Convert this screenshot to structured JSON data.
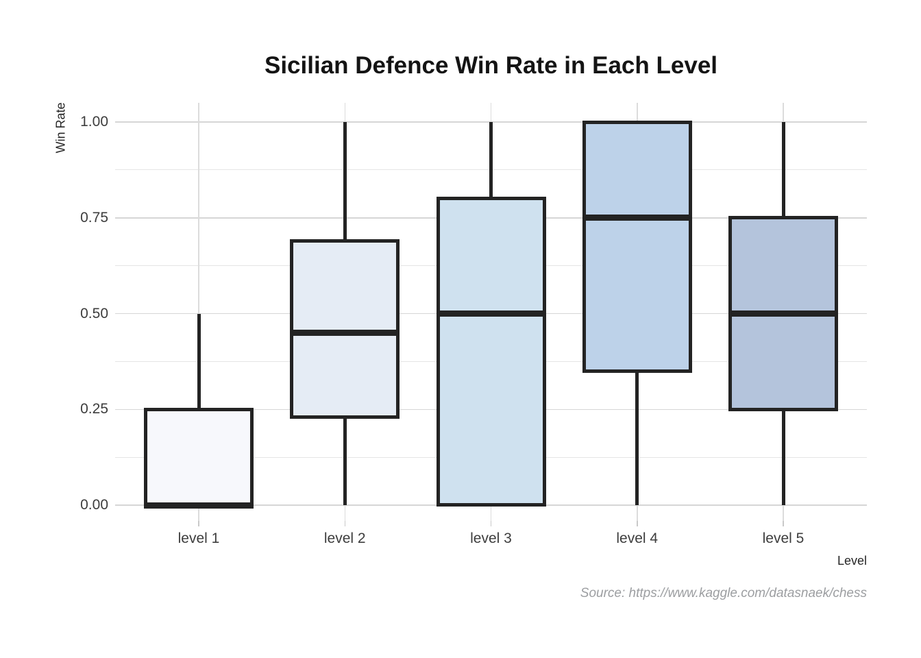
{
  "header": {
    "title": "Sicilian Defence Win Rate in Each Level"
  },
  "chart_data": {
    "type": "boxplot",
    "title": "Sicilian Defence Win Rate in Each Level",
    "xlabel": "Level",
    "ylabel": "Win Rate",
    "categories": [
      "level 1",
      "level 2",
      "level 3",
      "level 4",
      "level 5"
    ],
    "ylim": [
      0,
      1
    ],
    "yticks": {
      "values": [
        0,
        0.25,
        0.5,
        0.75,
        1.0
      ],
      "labels": [
        "0.00",
        "0.25",
        "0.50",
        "0.75",
        "1.00"
      ]
    },
    "minor_ytick_values": [
      0.125,
      0.375,
      0.625,
      0.875
    ],
    "grid": "horizontal major+minor gridlines, vertical gridline at each category",
    "legend": null,
    "boxes": [
      {
        "category": "level 1",
        "whisker_low": 0.0,
        "q1": 0.0,
        "median": 0.0,
        "q3": 0.25,
        "whisker_high": 0.5,
        "fill": "#f7f8fc"
      },
      {
        "category": "level 2",
        "whisker_low": 0.0,
        "q1": 0.23,
        "median": 0.45,
        "q3": 0.69,
        "whisker_high": 1.0,
        "fill": "#e5ecf5"
      },
      {
        "category": "level 3",
        "whisker_low": 0.0,
        "q1": 0.0,
        "median": 0.5,
        "q3": 0.8,
        "whisker_high": 1.0,
        "fill": "#cfe1ef"
      },
      {
        "category": "level 4",
        "whisker_low": 0.0,
        "q1": 0.35,
        "median": 0.75,
        "q3": 1.0,
        "whisker_high": 1.0,
        "fill": "#bdd2e9"
      },
      {
        "category": "level 5",
        "whisker_low": 0.0,
        "q1": 0.25,
        "median": 0.5,
        "q3": 0.75,
        "whisker_high": 1.0,
        "fill": "#b4c4dc"
      }
    ],
    "source": "Source: https://www.kaggle.com/datasnaek/chess",
    "colors": {
      "box_border": "#232323",
      "grid_major": "#d6d6d6",
      "grid_minor": "#e5e5e5",
      "grid_vertical": "#dcdcdc",
      "axis_tick": "#c9c9c9",
      "tick_label": "#3d3d3d",
      "axis_label": "#262626",
      "title": "#141414",
      "source": "#9c9ea1",
      "background": "#ffffff"
    }
  }
}
